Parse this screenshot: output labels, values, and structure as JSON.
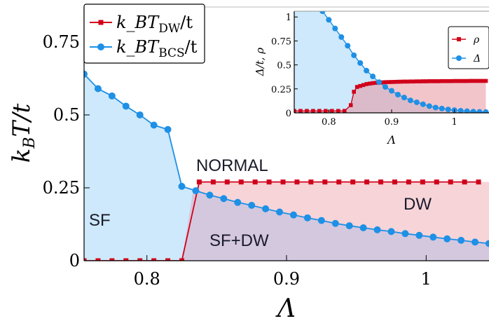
{
  "chart_data": [
    {
      "type": "line",
      "ylabel": "k_B T/t",
      "xlabel": "Λ",
      "xlim": [
        0.755,
        1.045
      ],
      "ylim": [
        0,
        0.87
      ],
      "xticks": [
        {
          "v": 0.8,
          "label": "0.8"
        },
        {
          "v": 0.9,
          "label": "0.9"
        },
        {
          "v": 1.0,
          "label": "1"
        }
      ],
      "yticks": [
        {
          "v": 0,
          "label": "0"
        },
        {
          "v": 0.25,
          "label": "0.25"
        },
        {
          "v": 0.5,
          "label": "0.5"
        },
        {
          "v": 0.75,
          "label": "0.75"
        }
      ],
      "series": [
        {
          "name_main": "k_BT",
          "name_sub": "DW",
          "name_tail": "/t",
          "color": "#d0021b",
          "marker": "square",
          "x": [
            0.755,
            0.765,
            0.775,
            0.785,
            0.795,
            0.805,
            0.815,
            0.825,
            0.8375,
            0.8475,
            0.8575,
            0.8675,
            0.8775,
            0.8875,
            0.8975,
            0.9075,
            0.9175,
            0.9275,
            0.9375,
            0.9475,
            0.9575,
            0.9675,
            0.9775,
            0.9875,
            0.9975,
            1.0075,
            1.0175,
            1.0275,
            1.0375
          ],
          "y": [
            0,
            0,
            0,
            0,
            0,
            0,
            0,
            0,
            0.27,
            0.27,
            0.27,
            0.27,
            0.27,
            0.27,
            0.27,
            0.27,
            0.27,
            0.27,
            0.27,
            0.27,
            0.27,
            0.27,
            0.27,
            0.27,
            0.27,
            0.27,
            0.27,
            0.27,
            0.27
          ]
        },
        {
          "name_main": "k_BT",
          "name_sub": "BCS",
          "name_tail": "/t",
          "color": "#1e90e6",
          "marker": "circle",
          "x": [
            0.755,
            0.765,
            0.775,
            0.785,
            0.795,
            0.805,
            0.815,
            0.825,
            0.835,
            0.845,
            0.855,
            0.865,
            0.875,
            0.885,
            0.895,
            0.905,
            0.915,
            0.925,
            0.935,
            0.945,
            0.955,
            0.965,
            0.975,
            0.985,
            0.995,
            1.005,
            1.015,
            1.025,
            1.035,
            1.045
          ],
          "y": [
            0.64,
            0.59,
            0.565,
            0.53,
            0.5,
            0.465,
            0.45,
            0.255,
            0.24,
            0.225,
            0.213,
            0.2,
            0.19,
            0.178,
            0.167,
            0.157,
            0.147,
            0.138,
            0.128,
            0.12,
            0.113,
            0.106,
            0.1,
            0.093,
            0.087,
            0.081,
            0.075,
            0.07,
            0.064,
            0.059
          ]
        }
      ],
      "region_labels": [
        "SF",
        "SF+DW",
        "DW",
        "NORMAL"
      ]
    },
    {
      "type": "line",
      "xlabel": "Λ",
      "ylabel": "Δ/t, ρ",
      "xlim": [
        0.745,
        1.055
      ],
      "ylim": [
        0,
        1.06
      ],
      "xticks": [
        {
          "v": 0.8,
          "label": "0.8"
        },
        {
          "v": 0.9,
          "label": "0.9"
        },
        {
          "v": 1.0,
          "label": "1"
        }
      ],
      "yticks": [
        {
          "v": 0,
          "label": "0"
        },
        {
          "v": 0.25,
          "label": "0.25"
        },
        {
          "v": 0.5,
          "label": "0.5"
        },
        {
          "v": 0.75,
          "label": "0.75"
        },
        {
          "v": 1.0,
          "label": "1"
        }
      ],
      "series": [
        {
          "name": "ρ",
          "color": "#d0021b",
          "marker": "square",
          "x": [
            0.745,
            0.755,
            0.765,
            0.775,
            0.785,
            0.795,
            0.805,
            0.815,
            0.825,
            0.835,
            0.84,
            0.845,
            0.85,
            0.855,
            0.86,
            0.865,
            0.87,
            0.875,
            0.88,
            0.885,
            0.89,
            0.895,
            0.9,
            0.905,
            0.91,
            0.915,
            0.92,
            0.925,
            0.93,
            0.935,
            0.94,
            0.945,
            0.95,
            0.955,
            0.96,
            0.965,
            0.97,
            0.975,
            0.98,
            0.985,
            0.99,
            0.995,
            1.0,
            1.005,
            1.01,
            1.015,
            1.02,
            1.025,
            1.03,
            1.035,
            1.04,
            1.045,
            1.05
          ],
          "y": [
            0.02,
            0.02,
            0.02,
            0.02,
            0.02,
            0.02,
            0.02,
            0.02,
            0.02,
            0.08,
            0.22,
            0.27,
            0.28,
            0.29,
            0.3,
            0.305,
            0.31,
            0.313,
            0.316,
            0.318,
            0.32,
            0.321,
            0.322,
            0.323,
            0.324,
            0.325,
            0.326,
            0.326,
            0.327,
            0.327,
            0.328,
            0.328,
            0.329,
            0.329,
            0.33,
            0.33,
            0.33,
            0.33,
            0.331,
            0.331,
            0.331,
            0.331,
            0.332,
            0.332,
            0.332,
            0.332,
            0.332,
            0.333,
            0.333,
            0.333,
            0.333,
            0.333,
            0.333
          ]
        },
        {
          "name": "Δ",
          "color": "#1e90e6",
          "marker": "circle",
          "x": [
            0.79,
            0.8,
            0.81,
            0.82,
            0.83,
            0.84,
            0.85,
            0.86,
            0.87,
            0.88,
            0.89,
            0.9,
            0.91,
            0.92,
            0.93,
            0.94,
            0.95,
            0.96,
            0.97,
            0.98,
            0.99,
            1.0,
            1.01,
            1.02,
            1.03,
            1.04,
            1.05
          ],
          "y": [
            1.06,
            0.97,
            0.88,
            0.79,
            0.7,
            0.6,
            0.52,
            0.44,
            0.38,
            0.32,
            0.27,
            0.23,
            0.19,
            0.16,
            0.13,
            0.11,
            0.09,
            0.07,
            0.055,
            0.045,
            0.035,
            0.028,
            0.022,
            0.017,
            0.013,
            0.01,
            0.008
          ]
        }
      ]
    }
  ]
}
